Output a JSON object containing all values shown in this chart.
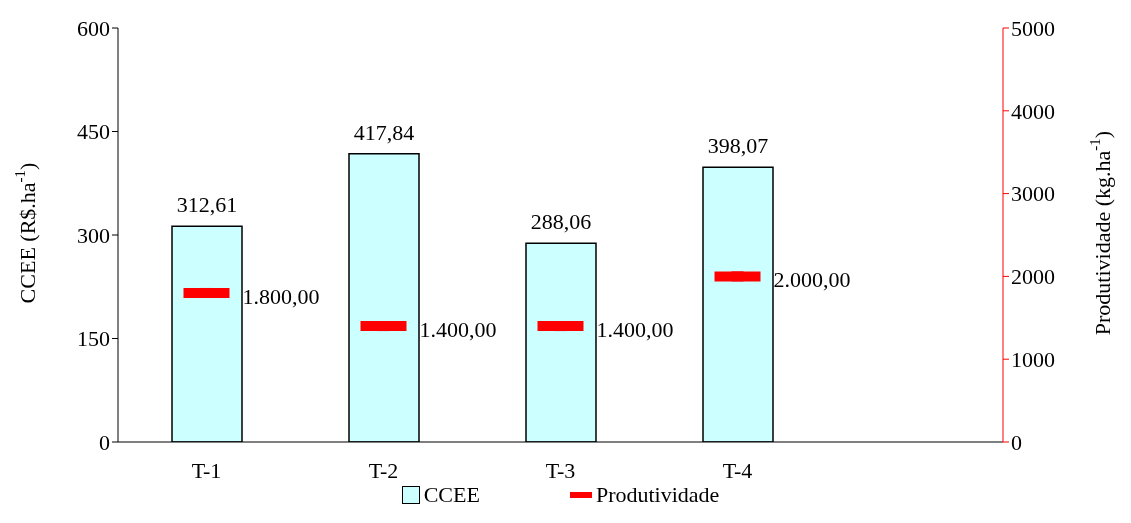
{
  "chart_data": {
    "type": "bar",
    "categories": [
      "T-1",
      "T-2",
      "T-3",
      "T-4",
      null
    ],
    "ylabel": "CCEE (R$.ha$^{-1}$)",
    "y2label": "Produtividade (kg.ha$^{-1}$)",
    "ylim": [
      0,
      600
    ],
    "yticks": [
      0,
      150,
      300,
      450,
      600
    ],
    "y2lim": [
      0,
      5000
    ],
    "y2ticks": [
      0,
      1000,
      2000,
      3000,
      4000,
      5000
    ],
    "legend": "bottom",
    "grid": false,
    "series": [
      {
        "name": "CCEE",
        "type": "bar",
        "color": "#ccffff",
        "values": [
          312.61,
          417.84,
          288.06,
          398.07,
          null
        ],
        "value_labels": [
          "312,61",
          "417,84",
          "288,06",
          "398,07",
          null
        ]
      },
      {
        "name": "Produtividade",
        "type": "scatter",
        "axis": "y2",
        "color": "#ff0000",
        "values": [
          1800,
          1400,
          1400,
          2000,
          null
        ],
        "value_labels": [
          "1.800,00",
          "1.400,00",
          "1.400,00",
          "2.000,00",
          null
        ]
      }
    ]
  }
}
